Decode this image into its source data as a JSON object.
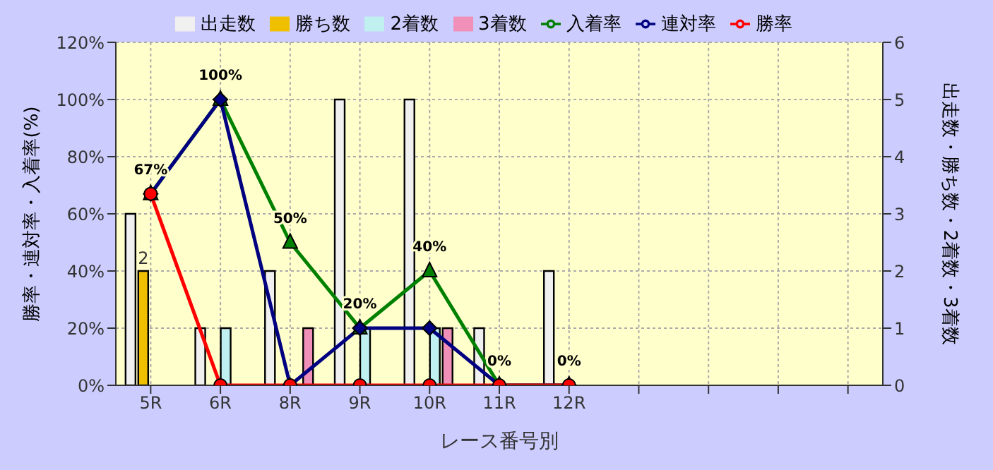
{
  "chart_data": {
    "type": "bar",
    "xlabel": "レース番号別",
    "ylabel": "勝率・連対率・入着率(%)",
    "y2label": "出走数・勝ち数・2着数・3着数",
    "categories": [
      "5R",
      "6R",
      "8R",
      "9R",
      "10R",
      "11R",
      "12R",
      null,
      null,
      null,
      null
    ],
    "series": [
      {
        "name": "出走数",
        "axis": "y2",
        "color": "#f0f0f0",
        "values": [
          3,
          1,
          2,
          5,
          5,
          1,
          2,
          null,
          null,
          null,
          null
        ]
      },
      {
        "name": "勝ち数",
        "axis": "y2",
        "color": "#f0c000",
        "values": [
          2,
          0,
          0,
          0,
          0,
          0,
          0,
          null,
          null,
          null,
          null
        ],
        "value_labels": [
          "2",
          null,
          null,
          null,
          null,
          null,
          null,
          null,
          null,
          null,
          null
        ]
      },
      {
        "name": "2着数",
        "axis": "y2",
        "color": "#c0f0f0",
        "values": [
          0,
          1,
          0,
          1,
          1,
          0,
          0,
          null,
          null,
          null,
          null
        ]
      },
      {
        "name": "3着数",
        "axis": "y2",
        "color": "#f090b8",
        "values": [
          0,
          0,
          1,
          0,
          1,
          0,
          0,
          null,
          null,
          null,
          null
        ]
      },
      {
        "name": "入着率",
        "type": "line",
        "axis": "y",
        "color": "#008000",
        "marker": "triangle",
        "values": [
          67,
          100,
          50,
          20,
          40,
          0,
          0,
          null,
          null,
          null,
          null
        ],
        "value_labels": [
          "67%",
          "100%",
          "50%",
          "20%",
          "40%",
          "0%",
          "0%",
          null,
          null,
          null,
          null
        ]
      },
      {
        "name": "連対率",
        "type": "line",
        "axis": "y",
        "color": "#000080",
        "marker": "diamond",
        "values": [
          67,
          100,
          0,
          20,
          20,
          0,
          0,
          null,
          null,
          null,
          null
        ]
      },
      {
        "name": "勝率",
        "type": "line",
        "axis": "y",
        "color": "#ff0000",
        "marker": "circle",
        "values": [
          67,
          0,
          0,
          0,
          0,
          0,
          0,
          null,
          null,
          null,
          null
        ]
      }
    ],
    "ylim": [
      0,
      120
    ],
    "yticks": [
      {
        "value": 0,
        "label": "0%"
      },
      {
        "value": 20,
        "label": "20%"
      },
      {
        "value": 40,
        "label": "40%"
      },
      {
        "value": 60,
        "label": "60%"
      },
      {
        "value": 80,
        "label": "80%"
      },
      {
        "value": 100,
        "label": "100%"
      },
      {
        "value": 120,
        "label": "120%"
      }
    ],
    "y2lim": [
      0,
      6
    ],
    "y2ticks": [
      0,
      1,
      2,
      3,
      4,
      5,
      6
    ],
    "grid": true,
    "legend": "top"
  }
}
